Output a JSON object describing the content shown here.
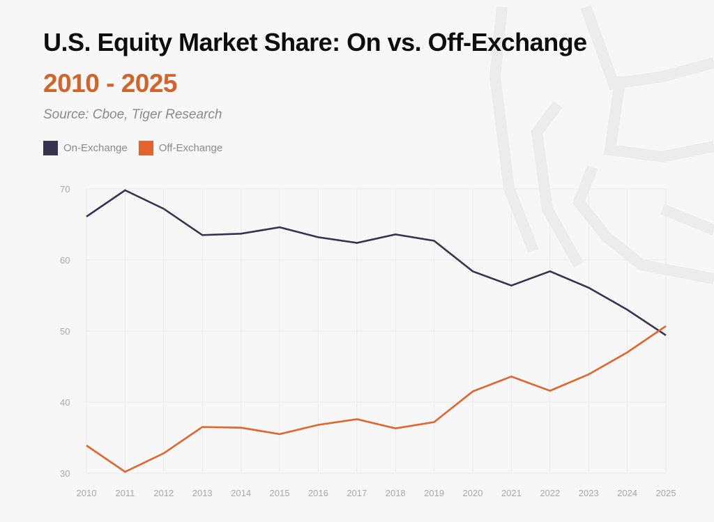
{
  "header": {
    "title": "U.S. Equity Market Share: On vs. Off-Exchange",
    "subtitle": "2010 - 2025",
    "source": "Source: Cboe, Tiger Research"
  },
  "legend": [
    {
      "label": "On-Exchange",
      "color": "#37334f"
    },
    {
      "label": "Off-Exchange",
      "color": "#e2642c"
    }
  ],
  "chart_data": {
    "type": "line",
    "title": "U.S. Equity Market Share: On vs. Off-Exchange",
    "subtitle": "2010 - 2025",
    "source": "Source: Cboe, Tiger Research",
    "xlabel": "",
    "ylabel": "",
    "x": [
      "2010",
      "2011",
      "2012",
      "2013",
      "2014",
      "2015",
      "2016",
      "2017",
      "2018",
      "2019",
      "2020",
      "2021",
      "2022",
      "2023",
      "2024",
      "2025"
    ],
    "yticks": [
      "30",
      "40",
      "50",
      "60",
      "70"
    ],
    "ylim": [
      30,
      70
    ],
    "grid": true,
    "legend_position": "top-left",
    "series": [
      {
        "name": "On-Exchange",
        "color": "#37334f",
        "values": [
          66.1,
          69.8,
          67.2,
          63.5,
          63.7,
          64.6,
          63.2,
          62.4,
          63.6,
          62.7,
          58.4,
          56.4,
          58.4,
          56.1,
          53.0,
          49.4
        ]
      },
      {
        "name": "Off-Exchange",
        "color": "#e2642c",
        "values": [
          33.9,
          30.2,
          32.8,
          36.5,
          36.4,
          35.5,
          36.8,
          37.6,
          36.3,
          37.2,
          41.5,
          43.6,
          41.6,
          43.9,
          47.0,
          50.7
        ]
      }
    ]
  }
}
